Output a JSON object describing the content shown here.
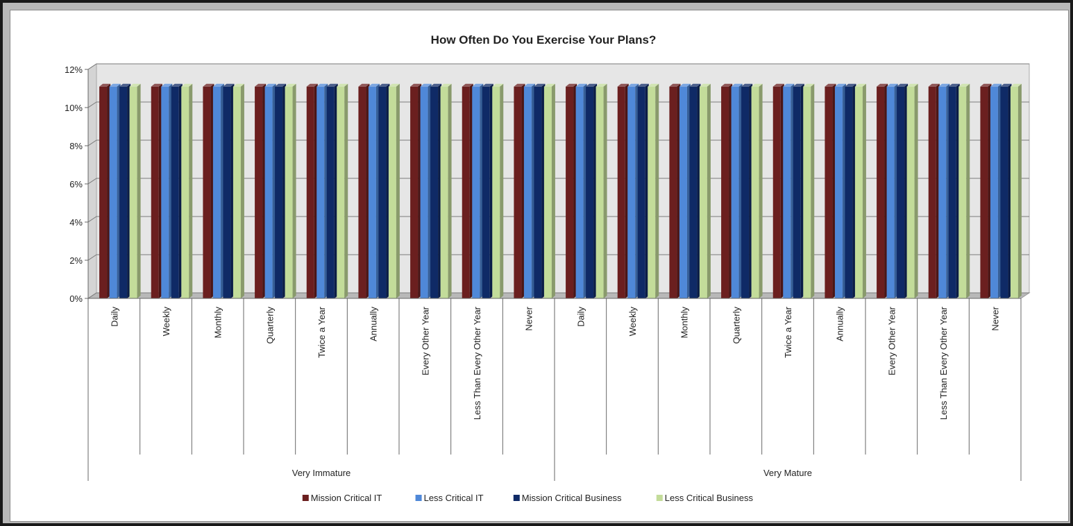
{
  "chart_data": {
    "type": "bar",
    "title": "How Often Do You Exercise Your Plans?",
    "xlabel": "",
    "ylabel": "",
    "ylim": [
      0,
      12
    ],
    "y_ticks": [
      "0%",
      "2%",
      "4%",
      "6%",
      "8%",
      "10%",
      "12%"
    ],
    "y_tick_values": [
      0,
      2,
      4,
      6,
      8,
      10,
      12
    ],
    "groups": [
      {
        "name": "Very Immature",
        "categories": [
          "Daily",
          "Weekly",
          "Monthly",
          "Quarterly",
          "Twice a Year",
          "Annually",
          "Every Other Year",
          "Less Than Every Other Year",
          "Never"
        ]
      },
      {
        "name": "Very Mature",
        "categories": [
          "Daily",
          "Weekly",
          "Monthly",
          "Quarterly",
          "Twice a Year",
          "Annually",
          "Every Other Year",
          "Less Than Every Other Year",
          "Never"
        ]
      }
    ],
    "series": [
      {
        "name": "Mission Critical IT",
        "color": "#6b1f1f",
        "values": [
          11.1,
          11.1,
          11.1,
          11.1,
          11.1,
          11.1,
          11.1,
          11.1,
          11.1,
          11.1,
          11.1,
          11.1,
          11.1,
          11.1,
          11.1,
          11.1,
          11.1,
          11.1
        ]
      },
      {
        "name": "Less Critical IT",
        "color": "#4f88d8",
        "values": [
          11.1,
          11.1,
          11.1,
          11.1,
          11.1,
          11.1,
          11.1,
          11.1,
          11.1,
          11.1,
          11.1,
          11.1,
          11.1,
          11.1,
          11.1,
          11.1,
          11.1,
          11.1
        ]
      },
      {
        "name": "Mission Critical Business",
        "color": "#0f2a66",
        "values": [
          11.1,
          11.1,
          11.1,
          11.1,
          11.1,
          11.1,
          11.1,
          11.1,
          11.1,
          11.1,
          11.1,
          11.1,
          11.1,
          11.1,
          11.1,
          11.1,
          11.1,
          11.1
        ]
      },
      {
        "name": "Less Critical Business",
        "color": "#c3dc9a",
        "values": [
          11.1,
          11.1,
          11.1,
          11.1,
          11.1,
          11.1,
          11.1,
          11.1,
          11.1,
          11.1,
          11.1,
          11.1,
          11.1,
          11.1,
          11.1,
          11.1,
          11.1,
          11.1
        ]
      }
    ],
    "grid": true,
    "legend_position": "bottom"
  }
}
